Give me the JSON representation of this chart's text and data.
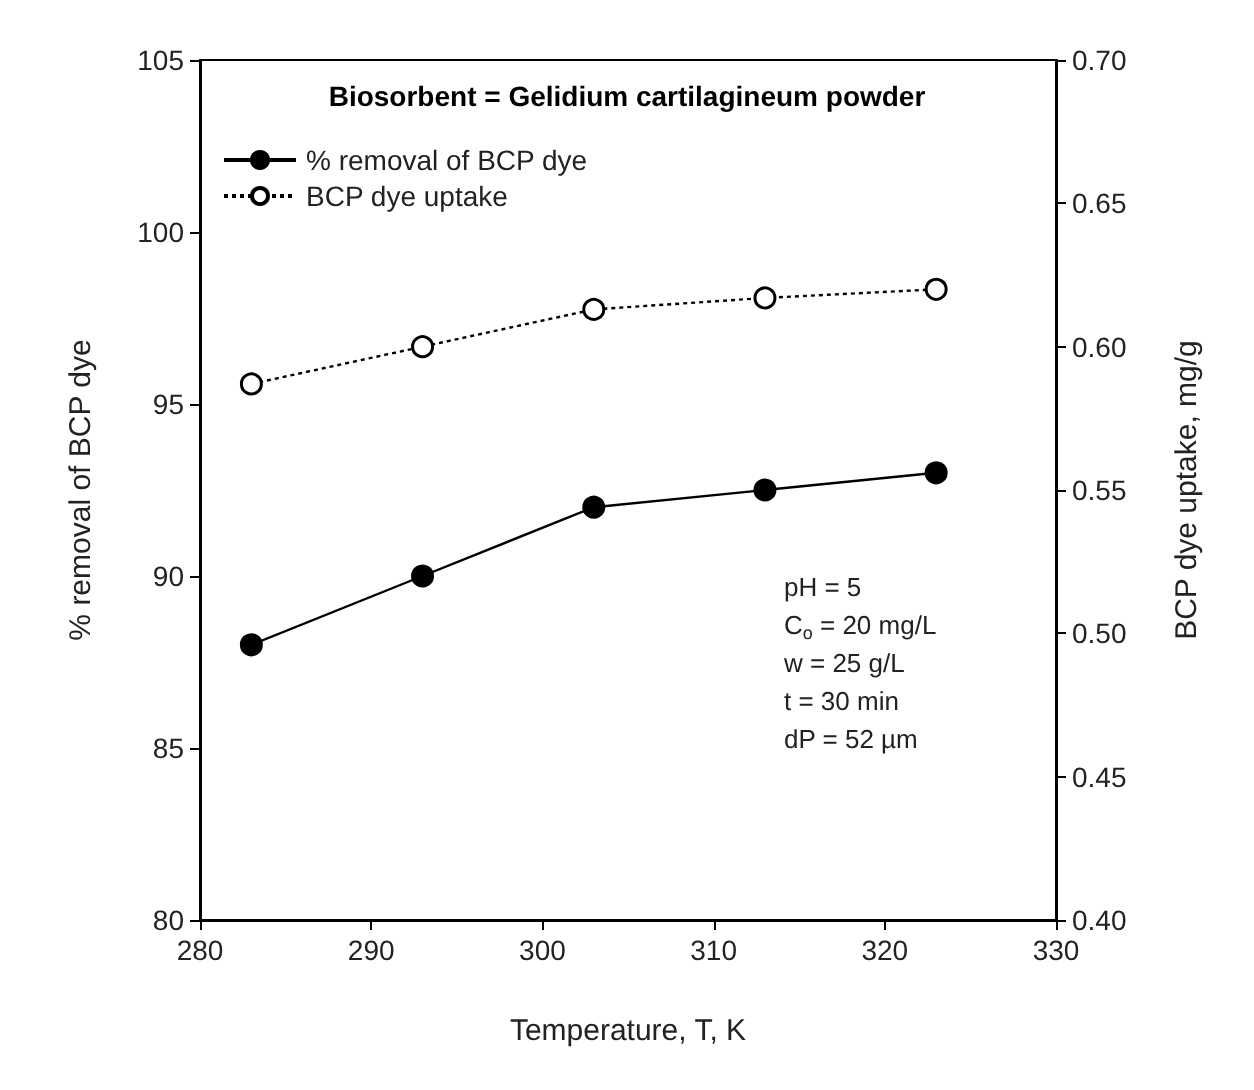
{
  "chart_data": {
    "type": "line",
    "title": "Biosorbent = Gelidium cartilagineum powder",
    "xlabel": "Temperature, T, K",
    "ylabel": "% removal of BCP dye",
    "y2label": "BCP dye uptake, mg/g",
    "x": [
      283,
      293,
      303,
      313,
      323
    ],
    "series": [
      {
        "name": "% removal of BCP dye",
        "color": "#000000",
        "values": [
          88,
          90,
          92,
          92.5,
          93
        ],
        "line_style": "solid",
        "marker": "circle"
      },
      {
        "name": "BCP dye uptake",
        "color": "#000000",
        "values": [
          0.587,
          0.6,
          0.613,
          0.617,
          0.62
        ],
        "axis": "y2",
        "line_style": "dotted",
        "marker": "circle"
      }
    ],
    "xlim": [
      280,
      330
    ],
    "xticks": [
      280,
      290,
      300,
      310,
      320,
      330
    ],
    "ylim": [
      80,
      105
    ],
    "yticks": [
      80,
      85,
      90,
      95,
      100,
      105
    ],
    "y2lim": [
      0.4,
      0.7
    ],
    "y2ticks": [
      {
        "value": 0.4,
        "label": "0.40"
      },
      {
        "value": 0.45,
        "label": "0.45"
      },
      {
        "value": 0.5,
        "label": "0.50"
      },
      {
        "value": 0.55,
        "label": "0.55"
      },
      {
        "value": 0.6,
        "label": "0.60"
      },
      {
        "value": 0.65,
        "label": "0.65"
      },
      {
        "value": 0.7,
        "label": "0.70"
      }
    ],
    "annotations": [
      "pH = 5",
      "C$_{o}$ = 20 mg/L",
      "w = 25 g/L",
      "t = 30 min",
      "dP = 52 µm"
    ],
    "grid": false,
    "legend": "top left"
  }
}
